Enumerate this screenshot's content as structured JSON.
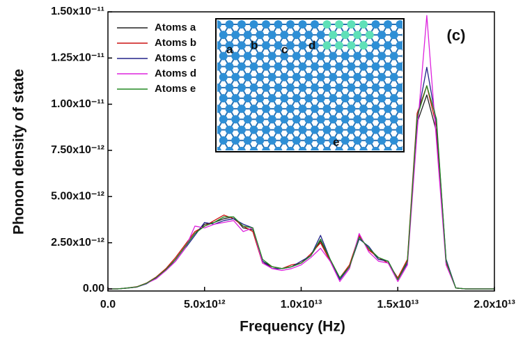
{
  "chart_data": {
    "type": "line",
    "x_label": "Frequency (Hz)",
    "y_label": "Phonon density of state",
    "panel_label": "(c)",
    "inset_labels": [
      "a",
      "b",
      "c",
      "d",
      "e"
    ],
    "x": [
      0,
      500000000000.0,
      1000000000000.0,
      1500000000000.0,
      2000000000000.0,
      2500000000000.0,
      3000000000000.0,
      3500000000000.0,
      4000000000000.0,
      4500000000000.0,
      5000000000000.0,
      5500000000000.0,
      6000000000000.0,
      6500000000000.0,
      7000000000000.0,
      7500000000000.0,
      8000000000000.0,
      8500000000000.0,
      9000000000000.0,
      9500000000000.0,
      10000000000000.0,
      10500000000000.0,
      11000000000000.0,
      11500000000000.0,
      12000000000000.0,
      12500000000000.0,
      13000000000000.0,
      13500000000000.0,
      14000000000000.0,
      14500000000000.0,
      15000000000000.0,
      15500000000000.0,
      16000000000000.0,
      16500000000000.0,
      17000000000000.0,
      17500000000000.0,
      18000000000000.0,
      18500000000000.0,
      19000000000000.0,
      19500000000000.0,
      20000000000000.0
    ],
    "series": [
      {
        "name": "Atoms a",
        "color": "#222222",
        "values": [
          0,
          0,
          5e-14,
          1e-13,
          3e-13,
          6e-13,
          1e-12,
          1.6e-12,
          2.3e-12,
          3e-12,
          3.5e-12,
          3.6e-12,
          3.8e-12,
          3.9e-12,
          3.3e-12,
          3.2e-12,
          1.5e-12,
          1.2e-12,
          1.1e-12,
          1.2e-12,
          1.4e-12,
          1.8e-12,
          2.6e-12,
          1.6e-12,
          6e-13,
          1.2e-12,
          2.8e-12,
          2.2e-12,
          1.6e-12,
          1.5e-12,
          5e-13,
          1.5e-12,
          9e-12,
          1.05e-11,
          8.5e-12,
          1.5e-12,
          5e-14,
          0,
          0,
          0,
          0
        ]
      },
      {
        "name": "Atoms b",
        "color": "#cc1111",
        "values": [
          0,
          0,
          5e-14,
          1.2e-13,
          3.2e-13,
          6.5e-13,
          1.1e-12,
          1.7e-12,
          2.4e-12,
          3.1e-12,
          3.4e-12,
          3.7e-12,
          4e-12,
          3.8e-12,
          3.4e-12,
          3.1e-12,
          1.4e-12,
          1.2e-12,
          1.1e-12,
          1.3e-12,
          1.4e-12,
          1.9e-12,
          2.5e-12,
          1.5e-12,
          6e-13,
          1.3e-12,
          2.9e-12,
          2.1e-12,
          1.7e-12,
          1.4e-12,
          6e-13,
          1.6e-12,
          9.5e-12,
          1.1e-11,
          8.8e-12,
          1.4e-12,
          5e-14,
          0,
          0,
          0,
          0
        ]
      },
      {
        "name": "Atoms c",
        "color": "#22228a",
        "values": [
          0,
          0,
          4e-14,
          1e-13,
          2.8e-13,
          6e-13,
          1e-12,
          1.5e-12,
          2.2e-12,
          2.9e-12,
          3.6e-12,
          3.5e-12,
          3.7e-12,
          3.8e-12,
          3.5e-12,
          3.3e-12,
          1.5e-12,
          1.1e-12,
          1.1e-12,
          1.2e-12,
          1.5e-12,
          1.8e-12,
          2.9e-12,
          1.6e-12,
          5e-13,
          1.2e-12,
          2.7e-12,
          2.3e-12,
          1.6e-12,
          1.5e-12,
          5e-13,
          1.4e-12,
          9.2e-12,
          1.2e-11,
          9e-12,
          1.6e-12,
          5e-14,
          0,
          0,
          0,
          0
        ]
      },
      {
        "name": "Atoms d",
        "color": "#dd22dd",
        "values": [
          0,
          0,
          5e-14,
          1e-13,
          3e-13,
          5.5e-13,
          1e-12,
          1.5e-12,
          2.2e-12,
          3.4e-12,
          3.3e-12,
          3.5e-12,
          3.6e-12,
          3.7e-12,
          3.1e-12,
          3.3e-12,
          1.4e-12,
          1.1e-12,
          1e-12,
          1.1e-12,
          1.3e-12,
          1.7e-12,
          2.2e-12,
          1.5e-12,
          4e-13,
          1.1e-12,
          3e-12,
          2e-12,
          1.5e-12,
          1.4e-12,
          4e-13,
          1.3e-12,
          8.5e-12,
          1.48e-11,
          8e-12,
          1.3e-12,
          5e-14,
          0,
          0,
          0,
          0
        ]
      },
      {
        "name": "Atoms e",
        "color": "#228822",
        "values": [
          0,
          0,
          5e-14,
          1.1e-13,
          3.1e-13,
          6.2e-13,
          1.05e-12,
          1.6e-12,
          2.3e-12,
          3e-12,
          3.4e-12,
          3.6e-12,
          3.9e-12,
          3.9e-12,
          3.4e-12,
          3.3e-12,
          1.6e-12,
          1.2e-12,
          1.1e-12,
          1.2e-12,
          1.4e-12,
          1.8e-12,
          2.7e-12,
          1.6e-12,
          6e-13,
          1.2e-12,
          2.8e-12,
          2.2e-12,
          1.7e-12,
          1.5e-12,
          5e-13,
          1.5e-12,
          9.3e-12,
          1.1e-11,
          9.2e-12,
          1.5e-12,
          5e-14,
          0,
          0,
          0,
          0
        ]
      }
    ],
    "xlim": [
      0,
      20000000000000.0
    ],
    "xticks": [
      {
        "value": 0,
        "label": "0.0"
      },
      {
        "value": 5000000000000.0,
        "label": "5.0x10¹²"
      },
      {
        "value": 10000000000000.0,
        "label": "1.0x10¹³"
      },
      {
        "value": 15000000000000.0,
        "label": "1.5x10¹³"
      },
      {
        "value": 20000000000000.0,
        "label": "2.0x10¹³"
      }
    ],
    "ylim": [
      0,
      1.5e-11
    ],
    "yticks": [
      {
        "value": 0,
        "label": "0.00"
      },
      {
        "value": 2.5e-12,
        "label": "2.50x10⁻¹²"
      },
      {
        "value": 5e-12,
        "label": "5.00x10⁻¹²"
      },
      {
        "value": 7.5e-12,
        "label": "7.50x10⁻¹²"
      },
      {
        "value": 1e-11,
        "label": "1.00x10⁻¹¹"
      },
      {
        "value": 1.25e-11,
        "label": "1.25x10⁻¹¹"
      },
      {
        "value": 1.5e-11,
        "label": "1.50x10⁻¹¹"
      }
    ],
    "legend": "upper left"
  }
}
